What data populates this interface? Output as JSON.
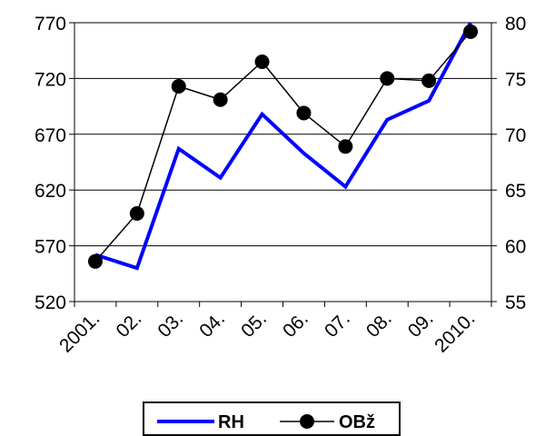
{
  "chart_data": {
    "type": "line",
    "title": "",
    "xlabel": "",
    "ylabel": "",
    "categories": [
      "2001.",
      "02.",
      "03.",
      "04.",
      "05.",
      "06.",
      "07.",
      "08.",
      "09.",
      "2010."
    ],
    "y_left": {
      "ticks": [
        "770",
        "720",
        "670",
        "620",
        "570",
        "520"
      ],
      "ylim": [
        520,
        770
      ]
    },
    "y_right": {
      "ticks": [
        "80",
        "75",
        "70",
        "65",
        "60",
        "55"
      ],
      "ylim": [
        55,
        80
      ]
    },
    "grid": true,
    "legend_placement": "bottom",
    "series": [
      {
        "name": "RH",
        "axis": "left",
        "color": "#0000ff",
        "marker": "none",
        "values": [
          562,
          550,
          657,
          631,
          688,
          653,
          623,
          683,
          700,
          770
        ]
      },
      {
        "name": "OBž",
        "axis": "right",
        "color": "#000000",
        "marker": "circle",
        "values": [
          58.6,
          62.9,
          74.3,
          73.1,
          76.5,
          71.9,
          68.9,
          75.0,
          74.8,
          79.2
        ]
      }
    ]
  }
}
